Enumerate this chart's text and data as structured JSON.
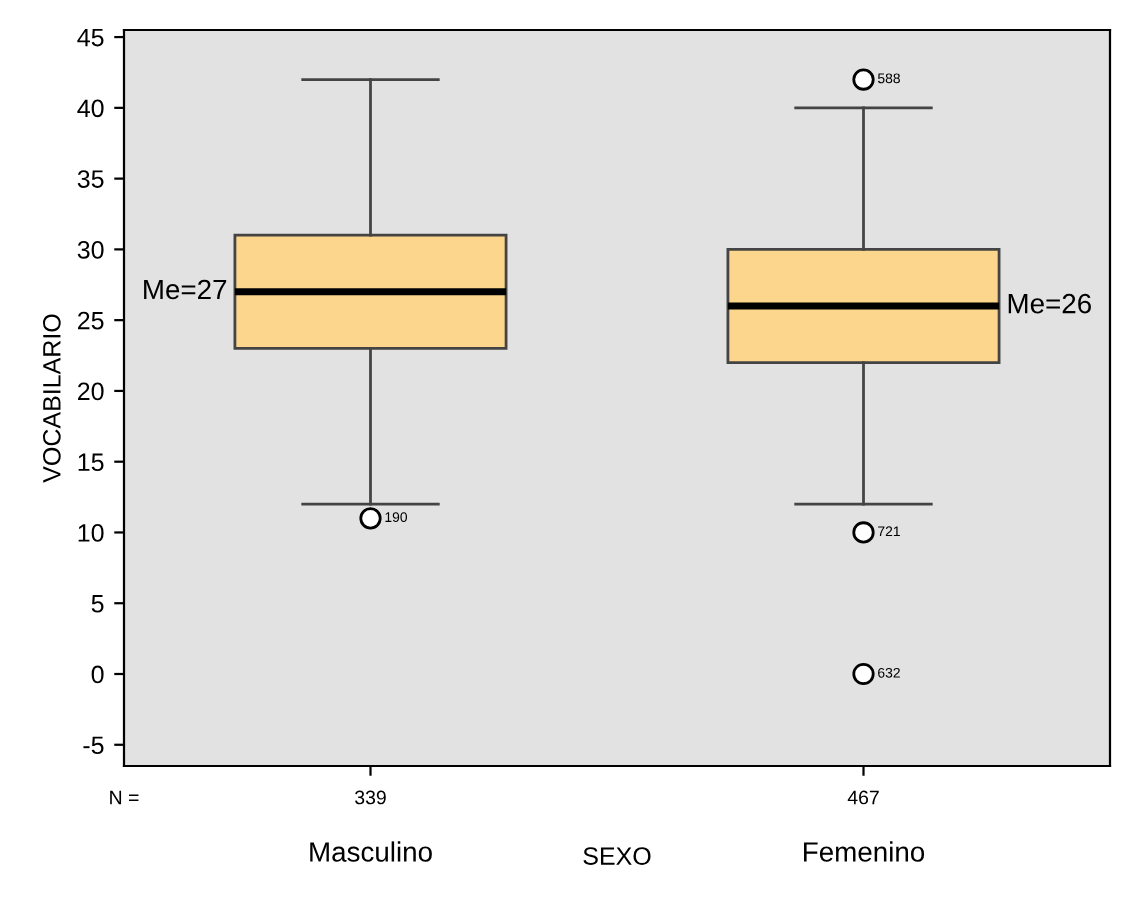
{
  "chart_data": {
    "type": "box",
    "xlabel": "SEXO",
    "ylabel": "VOCABILARIO",
    "categories": [
      "Masculino",
      "Femenino"
    ],
    "boxes": [
      {
        "low": 12,
        "q1": 23,
        "median": 27,
        "q3": 31,
        "high": 42,
        "outliers": [
          11
        ]
      },
      {
        "low": 12,
        "q1": 22,
        "median": 26,
        "q3": 30,
        "high": 40,
        "outliers": [
          42,
          10,
          0
        ]
      }
    ],
    "colors": [
      "#fcd68c",
      "#fcd68c"
    ],
    "ylim": [
      -6.5,
      45.5
    ],
    "yticks": [
      -5,
      0,
      5,
      10,
      15,
      20,
      25,
      30,
      35,
      40,
      45
    ],
    "grid": false,
    "annotations": [
      "Me=27",
      "Me=26",
      "190",
      "588",
      "721",
      "632",
      "N =",
      "339",
      "467"
    ]
  }
}
